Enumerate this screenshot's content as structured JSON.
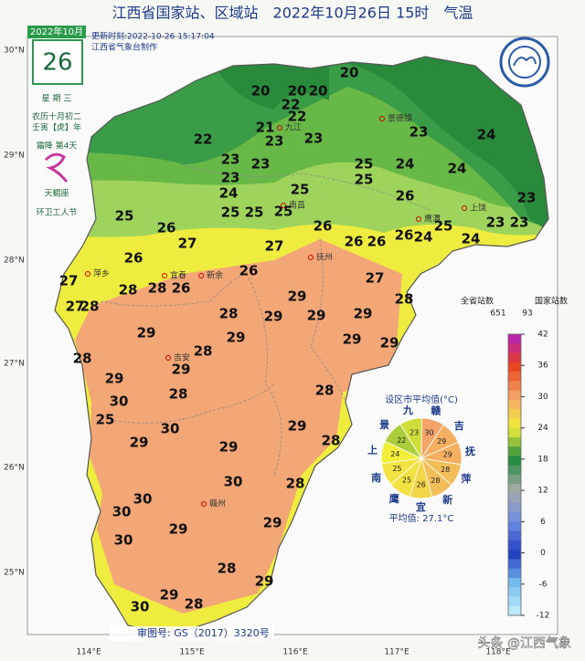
{
  "header": {
    "title": "江西省国家站、区域站　2022年10月26日 15时　气温",
    "update_time": "更新时刻:2022-10-26 15:17:04",
    "maker": "江西省气象台制作"
  },
  "date_box": {
    "month": "2022年10月",
    "day": "26",
    "weekday": "星 期 三",
    "lunar": "农历十月初二",
    "year_name": "壬寅【虎】年",
    "solar_term": "霜降 第4天",
    "zodiac": "天蝎座",
    "festival": "环卫工人节"
  },
  "axes": {
    "lat": [
      "30°N",
      "29°N",
      "28°N",
      "27°N",
      "26°N",
      "25°N"
    ],
    "lon": [
      "114°E",
      "115°E",
      "116°E",
      "117°E",
      "118°E"
    ]
  },
  "places": [
    "南昌",
    "九江",
    "景德镇",
    "上饶",
    "鹰潭",
    "抚州",
    "宜春",
    "萍乡",
    "新余",
    "吉安",
    "赣州"
  ],
  "temperatures": [
    20,
    20,
    20,
    20,
    22,
    22,
    22,
    21,
    23,
    23,
    23,
    24,
    23,
    23,
    25,
    24,
    24,
    23,
    24,
    25,
    25,
    26,
    23,
    25,
    26,
    25,
    25,
    25,
    26,
    26,
    26,
    24,
    25,
    24,
    23,
    23,
    26,
    27,
    27,
    26,
    26,
    27,
    27,
    28,
    28,
    26,
    29,
    28,
    27,
    28,
    28,
    29,
    29,
    29,
    29,
    28,
    29,
    29,
    29,
    28,
    29,
    29,
    28,
    30,
    28,
    25,
    29,
    30,
    28,
    29,
    29,
    30,
    28,
    30,
    30,
    29,
    29,
    30,
    28,
    29,
    29,
    28,
    30
  ],
  "legend": {
    "all_label": "全省站数",
    "all_count": 651,
    "national_label": "国家站数",
    "national_count": 93,
    "ticks": [
      42,
      36,
      30,
      24,
      18,
      12,
      6,
      0,
      -6,
      -12
    ],
    "tick_colors": [
      "#b020c0",
      "#e8401c",
      "#f4a468",
      "#f2ee3a",
      "#1e8a3e",
      "#a8a8a8",
      "#6e8ee6",
      "#1e3cc0",
      "#78bef0",
      "#c4f2fc"
    ]
  },
  "pie": {
    "title": "设区市平均值(°C)",
    "cities": [
      "九",
      "赣",
      "吉",
      "抚",
      "萍",
      "新",
      "宜",
      "鹰",
      "南",
      "上",
      "景"
    ],
    "values": [
      23,
      30,
      29,
      29,
      28,
      28,
      26,
      25,
      25,
      24,
      22
    ],
    "mean_label": "平均值: 27.1°C"
  },
  "footer": {
    "approval": "审图号: GS（2017）3320号",
    "watermark": "头条 @江西气象"
  }
}
